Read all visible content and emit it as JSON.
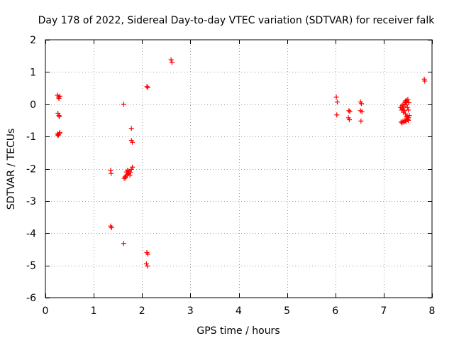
{
  "chart_data": {
    "type": "scatter",
    "title": "Day 178 of 2022, Sidereal Day-to-day VTEC variation (SDTVAR) for receiver falk",
    "xlabel": "GPS time / hours",
    "ylabel": "SDTVAR / TECUs",
    "xlim": [
      0,
      8
    ],
    "ylim": [
      -6,
      2
    ],
    "x_ticks": [
      0,
      1,
      2,
      3,
      4,
      5,
      6,
      7,
      8
    ],
    "y_ticks": [
      -6,
      -5,
      -4,
      -3,
      -2,
      -1,
      0,
      1,
      2
    ],
    "grid": true,
    "marker": "+",
    "series": [
      {
        "name": "SDTVAR",
        "color": "#ff0000",
        "points": [
          [
            0.25,
            0.28
          ],
          [
            0.27,
            0.22
          ],
          [
            0.28,
            0.18
          ],
          [
            0.3,
            0.25
          ],
          [
            0.26,
            -0.28
          ],
          [
            0.28,
            -0.35
          ],
          [
            0.29,
            -0.38
          ],
          [
            0.25,
            -0.92
          ],
          [
            0.27,
            -0.95
          ],
          [
            0.29,
            -0.9
          ],
          [
            0.3,
            -0.88
          ],
          [
            0.26,
            -0.97
          ],
          [
            1.35,
            -2.05
          ],
          [
            1.36,
            -2.15
          ],
          [
            1.35,
            -3.78
          ],
          [
            1.37,
            -3.83
          ],
          [
            1.62,
            0.0
          ],
          [
            1.62,
            -4.32
          ],
          [
            1.63,
            -2.3
          ],
          [
            1.65,
            -2.25
          ],
          [
            1.67,
            -2.2
          ],
          [
            1.68,
            -2.1
          ],
          [
            1.7,
            -2.05
          ],
          [
            1.72,
            -2.15
          ],
          [
            1.73,
            -2.08
          ],
          [
            1.75,
            -2.2
          ],
          [
            1.76,
            -2.12
          ],
          [
            1.78,
            -2.02
          ],
          [
            1.8,
            -1.95
          ],
          [
            1.7,
            -2.18
          ],
          [
            1.66,
            -2.28
          ],
          [
            1.78,
            -0.75
          ],
          [
            1.78,
            -1.12
          ],
          [
            1.8,
            -1.18
          ],
          [
            2.1,
            0.55
          ],
          [
            2.12,
            0.52
          ],
          [
            2.1,
            -4.6
          ],
          [
            2.12,
            -4.65
          ],
          [
            2.09,
            -4.95
          ],
          [
            2.11,
            -5.02
          ],
          [
            2.6,
            1.38
          ],
          [
            2.62,
            1.3
          ],
          [
            6.02,
            0.22
          ],
          [
            6.04,
            0.07
          ],
          [
            6.03,
            -0.33
          ],
          [
            6.28,
            -0.2
          ],
          [
            6.3,
            -0.22
          ],
          [
            6.27,
            -0.42
          ],
          [
            6.29,
            -0.48
          ],
          [
            6.52,
            0.07
          ],
          [
            6.54,
            0.02
          ],
          [
            6.52,
            -0.2
          ],
          [
            6.55,
            -0.23
          ],
          [
            6.53,
            -0.52
          ],
          [
            7.35,
            -0.1
          ],
          [
            7.37,
            -0.18
          ],
          [
            7.38,
            -0.05
          ],
          [
            7.4,
            0.0
          ],
          [
            7.42,
            -0.08
          ],
          [
            7.44,
            0.05
          ],
          [
            7.45,
            0.1
          ],
          [
            7.47,
            0.12
          ],
          [
            7.48,
            0.08
          ],
          [
            7.5,
            0.15
          ],
          [
            7.52,
            0.05
          ],
          [
            7.38,
            -0.12
          ],
          [
            7.4,
            -0.15
          ],
          [
            7.43,
            -0.2
          ],
          [
            7.46,
            -0.02
          ],
          [
            7.49,
            -0.1
          ],
          [
            7.51,
            -0.18
          ],
          [
            7.36,
            -0.55
          ],
          [
            7.38,
            -0.58
          ],
          [
            7.4,
            -0.52
          ],
          [
            7.42,
            -0.56
          ],
          [
            7.44,
            -0.5
          ],
          [
            7.46,
            -0.54
          ],
          [
            7.48,
            -0.45
          ],
          [
            7.5,
            -0.48
          ],
          [
            7.52,
            -0.42
          ],
          [
            7.47,
            -0.38
          ],
          [
            7.49,
            -0.4
          ],
          [
            7.51,
            -0.5
          ],
          [
            7.45,
            -0.3
          ],
          [
            7.41,
            -0.25
          ],
          [
            7.53,
            -0.35
          ],
          [
            7.84,
            0.78
          ],
          [
            7.85,
            0.72
          ]
        ]
      }
    ]
  }
}
